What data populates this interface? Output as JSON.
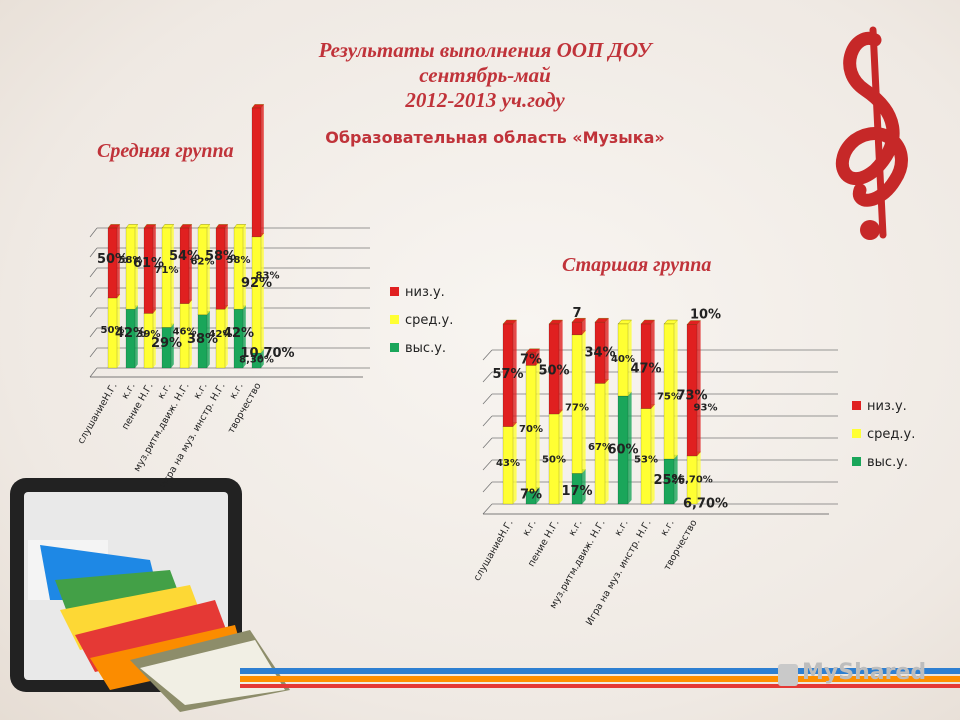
{
  "header": {
    "title_line1": "Результаты выполнения ООП ДОУ",
    "title_line2": "сентябрь-май",
    "title_line3": "2012-2013 уч.году",
    "subtitle": "Образовательная область «Музыка»"
  },
  "colors": {
    "niz": "#e02020",
    "sred": "#ffff33",
    "vys": "#1aa65a",
    "accent": "#c0333a"
  },
  "brand_text": "MyShared",
  "chart_data": [
    {
      "type": "bar",
      "stacked": true,
      "group_label": "Средняя группа",
      "categories": [
        "слушаниеН.Г.",
        "к.г.",
        "пение Н.Г.",
        "к.г.",
        "муз.ритм.движ. Н.Г.",
        "к.г.",
        "Игра на муз. инстр. Н.Г.",
        "к.г.",
        "творчество"
      ],
      "legend": [
        "низ.у.",
        "сред.у.",
        "выс.у."
      ],
      "legend_position": "right",
      "grid": true,
      "series": [
        {
          "name": "выс.у.",
          "values": [
            0,
            42,
            0,
            29,
            0,
            38,
            0,
            42,
            10.7
          ]
        },
        {
          "name": "сред.у.",
          "values": [
            50,
            58,
            39,
            71,
            46,
            62,
            42,
            58,
            83
          ]
        },
        {
          "name": "низ.у.",
          "values": [
            50,
            0,
            61,
            0,
            54,
            0,
            58,
            0,
            92
          ]
        }
      ],
      "labels": [
        {
          "text": "50%",
          "cat": 0,
          "y": 75,
          "size": "big"
        },
        {
          "text": "58%",
          "cat": 1,
          "y": 75,
          "size": "small"
        },
        {
          "text": "50%",
          "cat": 0,
          "y": 25,
          "size": "small"
        },
        {
          "text": "42%",
          "cat": 1,
          "y": 22,
          "size": "big"
        },
        {
          "text": "61%",
          "cat": 2,
          "y": 72,
          "size": "big"
        },
        {
          "text": "71%",
          "cat": 3,
          "y": 68,
          "size": "small"
        },
        {
          "text": "39%",
          "cat": 2,
          "y": 22,
          "size": "small"
        },
        {
          "text": "29%",
          "cat": 3,
          "y": 15,
          "size": "big"
        },
        {
          "text": "54%",
          "cat": 4,
          "y": 77,
          "size": "big"
        },
        {
          "text": "62%",
          "cat": 5,
          "y": 74,
          "size": "small"
        },
        {
          "text": "46%",
          "cat": 4,
          "y": 24,
          "size": "small"
        },
        {
          "text": "38%",
          "cat": 5,
          "y": 18,
          "size": "big"
        },
        {
          "text": "58%",
          "cat": 6,
          "y": 77,
          "size": "big"
        },
        {
          "text": "58%",
          "cat": 7,
          "y": 75,
          "size": "small"
        },
        {
          "text": "42%",
          "cat": 6,
          "y": 22,
          "size": "small"
        },
        {
          "text": "42%",
          "cat": 7,
          "y": 22,
          "size": "big"
        },
        {
          "text": "92%",
          "cat": 8,
          "y": 58,
          "size": "big"
        },
        {
          "text": "83%",
          "cat": 8.5,
          "y": 64,
          "size": "small"
        },
        {
          "text": "8,30%",
          "cat": 8,
          "y": 4,
          "size": "small"
        },
        {
          "text": "10,70%",
          "cat": 8.5,
          "y": 8,
          "size": "big"
        }
      ]
    },
    {
      "type": "bar",
      "stacked": true,
      "group_label": "Старшая группа",
      "categories": [
        "слушаниеН.Г.",
        "к.г.",
        "пение Н.Г.",
        "к.г.",
        "муз.ритм.движ. Н.Г.",
        "к.г.",
        "Игра на муз. инстр. Н.Г.",
        "к.г.",
        "творчество"
      ],
      "legend": [
        "низ.у.",
        "сред.у.",
        "выс.у."
      ],
      "legend_position": "right",
      "grid": true,
      "series": [
        {
          "name": "выс.у.",
          "values": [
            0,
            7,
            0,
            17,
            0,
            60,
            0,
            25,
            0
          ]
        },
        {
          "name": "сред.у.",
          "values": [
            43,
            70,
            50,
            77,
            67,
            40,
            53,
            75,
            26.7
          ]
        },
        {
          "name": "низ.у.",
          "values": [
            57,
            7,
            50,
            7,
            34,
            0,
            47,
            0,
            73
          ]
        }
      ],
      "labels": [
        {
          "text": "57%",
          "cat": 0,
          "y": 70,
          "size": "big"
        },
        {
          "text": "7%",
          "cat": 1,
          "y": 78,
          "size": "big"
        },
        {
          "text": "43%",
          "cat": 0,
          "y": 21,
          "size": "small"
        },
        {
          "text": "70%",
          "cat": 1,
          "y": 40,
          "size": "small"
        },
        {
          "text": "7%",
          "cat": 1,
          "y": 3,
          "size": "big"
        },
        {
          "text": "50%",
          "cat": 2,
          "y": 72,
          "size": "big"
        },
        {
          "text": "7",
          "cat": 3,
          "y": 104,
          "size": "big"
        },
        {
          "text": "50%",
          "cat": 2,
          "y": 23,
          "size": "small"
        },
        {
          "text": "77%",
          "cat": 3,
          "y": 52,
          "size": "small"
        },
        {
          "text": "17%",
          "cat": 3,
          "y": 5,
          "size": "big"
        },
        {
          "text": "34%",
          "cat": 4,
          "y": 82,
          "size": "big"
        },
        {
          "text": "40%",
          "cat": 5,
          "y": 79,
          "size": "small"
        },
        {
          "text": "67%",
          "cat": 4,
          "y": 30,
          "size": "small"
        },
        {
          "text": "60%",
          "cat": 5,
          "y": 28,
          "size": "big"
        },
        {
          "text": "47%",
          "cat": 6,
          "y": 73,
          "size": "big"
        },
        {
          "text": "75%",
          "cat": 7,
          "y": 58,
          "size": "small"
        },
        {
          "text": "53%",
          "cat": 6,
          "y": 23,
          "size": "small"
        },
        {
          "text": "25%",
          "cat": 7,
          "y": 11,
          "size": "big"
        },
        {
          "text": "73%",
          "cat": 8,
          "y": 58,
          "size": "big"
        },
        {
          "text": "10%",
          "cat": 8.5,
          "y": 103,
          "size": "big"
        },
        {
          "text": "93%",
          "cat": 8.5,
          "y": 52,
          "size": "small"
        },
        {
          "text": "26,70%",
          "cat": 8,
          "y": 12,
          "size": "small"
        },
        {
          "text": "6,70%",
          "cat": 8.5,
          "y": -2,
          "size": "big"
        }
      ]
    }
  ]
}
